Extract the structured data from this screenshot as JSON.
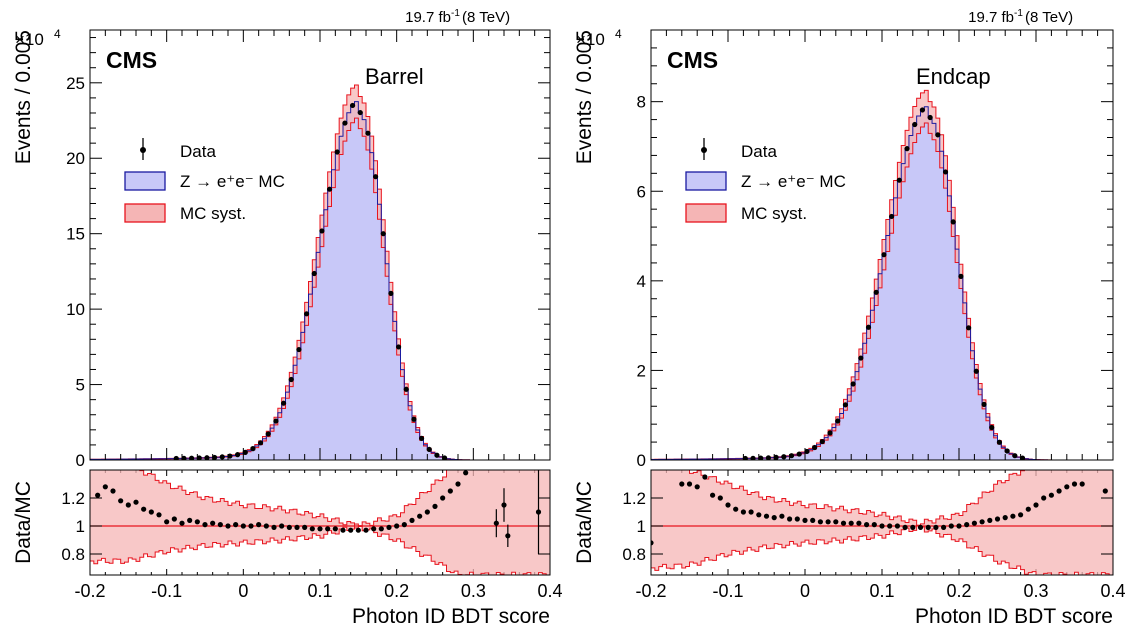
{
  "chart_data": [
    {
      "type": "histogram",
      "region": "Barrel",
      "experiment": "CMS",
      "lumi": "19.7 fb",
      "lumi_sup": "-1",
      "energy": "(8 TeV)",
      "xlabel": "Photon ID BDT score",
      "ylabel": "Events / 0.005",
      "y_exponent": "×10",
      "y_exponent_sup": "4",
      "ratio_ylabel": "Data/MC",
      "xlim": [
        -0.2,
        0.4
      ],
      "ylim": [
        0,
        28.5
      ],
      "ratio_ylim": [
        0.65,
        1.4
      ],
      "x_ticks": [
        -0.2,
        -0.1,
        0,
        0.1,
        0.2,
        0.3,
        0.4
      ],
      "x_tick_labels": [
        "-0.2",
        "-0.1",
        "0",
        "0.1",
        "0.2",
        "0.3",
        "0.4"
      ],
      "y_ticks": [
        0,
        5,
        10,
        15,
        20,
        25
      ],
      "y_tick_labels": [
        "0",
        "5",
        "10",
        "15",
        "20",
        "25"
      ],
      "ratio_ticks": [
        0.8,
        1,
        1.2
      ],
      "ratio_tick_labels": [
        "0.8",
        "1",
        "1.2"
      ],
      "legend": [
        "Data",
        "Z → e⁺e⁻ MC",
        "MC syst."
      ],
      "peak_x": 0.15,
      "peak_y": 23.8,
      "sigma_left": 0.05,
      "sigma_right": 0.035,
      "syst_fraction": 0.045,
      "ratio_points": [
        {
          "x": -0.19,
          "y": 1.22
        },
        {
          "x": -0.18,
          "y": 1.28
        },
        {
          "x": -0.17,
          "y": 1.25
        },
        {
          "x": -0.16,
          "y": 1.18
        },
        {
          "x": -0.15,
          "y": 1.15
        },
        {
          "x": -0.14,
          "y": 1.17
        },
        {
          "x": -0.13,
          "y": 1.12
        },
        {
          "x": -0.12,
          "y": 1.1
        },
        {
          "x": -0.11,
          "y": 1.08
        },
        {
          "x": -0.1,
          "y": 1.03
        },
        {
          "x": -0.09,
          "y": 1.05
        },
        {
          "x": -0.08,
          "y": 1.02
        },
        {
          "x": -0.07,
          "y": 1.04
        },
        {
          "x": -0.06,
          "y": 1.03
        },
        {
          "x": -0.05,
          "y": 1.01
        },
        {
          "x": -0.04,
          "y": 1.02
        },
        {
          "x": -0.03,
          "y": 1.01
        },
        {
          "x": -0.02,
          "y": 1.0
        },
        {
          "x": -0.01,
          "y": 1.01
        },
        {
          "x": 0.0,
          "y": 1.0
        },
        {
          "x": 0.01,
          "y": 1.0
        },
        {
          "x": 0.02,
          "y": 1.01
        },
        {
          "x": 0.03,
          "y": 1.0
        },
        {
          "x": 0.04,
          "y": 0.99
        },
        {
          "x": 0.05,
          "y": 1.0
        },
        {
          "x": 0.06,
          "y": 0.99
        },
        {
          "x": 0.07,
          "y": 0.99
        },
        {
          "x": 0.08,
          "y": 0.99
        },
        {
          "x": 0.09,
          "y": 0.98
        },
        {
          "x": 0.1,
          "y": 0.98
        },
        {
          "x": 0.11,
          "y": 0.98
        },
        {
          "x": 0.12,
          "y": 0.98
        },
        {
          "x": 0.13,
          "y": 0.97
        },
        {
          "x": 0.14,
          "y": 0.97
        },
        {
          "x": 0.15,
          "y": 0.97
        },
        {
          "x": 0.16,
          "y": 0.97
        },
        {
          "x": 0.17,
          "y": 0.98
        },
        {
          "x": 0.18,
          "y": 0.98
        },
        {
          "x": 0.19,
          "y": 0.99
        },
        {
          "x": 0.2,
          "y": 1.0
        },
        {
          "x": 0.21,
          "y": 1.01
        },
        {
          "x": 0.22,
          "y": 1.04
        },
        {
          "x": 0.23,
          "y": 1.07
        },
        {
          "x": 0.24,
          "y": 1.1
        },
        {
          "x": 0.25,
          "y": 1.14
        },
        {
          "x": 0.26,
          "y": 1.2
        },
        {
          "x": 0.27,
          "y": 1.25
        },
        {
          "x": 0.28,
          "y": 1.3
        },
        {
          "x": 0.29,
          "y": 1.38
        },
        {
          "x": 0.33,
          "y": 1.02,
          "err": 0.1
        },
        {
          "x": 0.34,
          "y": 1.15,
          "err": 0.12
        },
        {
          "x": 0.345,
          "y": 0.93,
          "err": 0.08
        },
        {
          "x": 0.385,
          "y": 1.1,
          "err": 0.3
        }
      ],
      "ratio_band_upper": [
        [
          -0.2,
          1.45
        ],
        [
          -0.15,
          1.45
        ],
        [
          -0.1,
          1.3
        ],
        [
          -0.05,
          1.2
        ],
        [
          0.0,
          1.15
        ],
        [
          0.05,
          1.12
        ],
        [
          0.1,
          1.07
        ],
        [
          0.15,
          1.0
        ],
        [
          0.2,
          1.07
        ],
        [
          0.25,
          1.3
        ],
        [
          0.28,
          1.45
        ],
        [
          0.4,
          1.45
        ]
      ],
      "ratio_band_lower": [
        [
          -0.2,
          0.75
        ],
        [
          -0.15,
          0.75
        ],
        [
          -0.1,
          0.82
        ],
        [
          -0.05,
          0.86
        ],
        [
          0.0,
          0.88
        ],
        [
          0.05,
          0.9
        ],
        [
          0.1,
          0.93
        ],
        [
          0.15,
          1.0
        ],
        [
          0.2,
          0.9
        ],
        [
          0.25,
          0.75
        ],
        [
          0.28,
          0.65
        ],
        [
          0.4,
          0.65
        ]
      ]
    },
    {
      "type": "histogram",
      "region": "Endcap",
      "experiment": "CMS",
      "lumi": "19.7 fb",
      "lumi_sup": "-1",
      "energy": "(8 TeV)",
      "xlabel": "Photon ID BDT score",
      "ylabel": "Events / 0.005",
      "y_exponent": "×10",
      "y_exponent_sup": "4",
      "ratio_ylabel": "Data/MC",
      "xlim": [
        -0.2,
        0.4
      ],
      "ylim": [
        0,
        9.6
      ],
      "ratio_ylim": [
        0.65,
        1.4
      ],
      "x_ticks": [
        -0.2,
        -0.1,
        0,
        0.1,
        0.2,
        0.3,
        0.4
      ],
      "x_tick_labels": [
        "-0.2",
        "-0.1",
        "0",
        "0.1",
        "0.2",
        "0.3",
        "0.4"
      ],
      "y_ticks": [
        0,
        2,
        4,
        6,
        8
      ],
      "y_tick_labels": [
        "0",
        "2",
        "4",
        "6",
        "8"
      ],
      "ratio_ticks": [
        0.8,
        1,
        1.2
      ],
      "ratio_tick_labels": [
        "0.8",
        "1",
        "1.2"
      ],
      "legend": [
        "Data",
        "Z → e⁺e⁻ MC",
        "MC syst."
      ],
      "peak_x": 0.16,
      "peak_y": 7.9,
      "sigma_left": 0.055,
      "sigma_right": 0.038,
      "syst_fraction": 0.045,
      "ratio_points": [
        {
          "x": -0.2,
          "y": 0.88
        },
        {
          "x": -0.16,
          "y": 1.3
        },
        {
          "x": -0.15,
          "y": 1.3
        },
        {
          "x": -0.14,
          "y": 1.28
        },
        {
          "x": -0.13,
          "y": 1.35
        },
        {
          "x": -0.12,
          "y": 1.22
        },
        {
          "x": -0.11,
          "y": 1.2
        },
        {
          "x": -0.1,
          "y": 1.15
        },
        {
          "x": -0.09,
          "y": 1.12
        },
        {
          "x": -0.08,
          "y": 1.1
        },
        {
          "x": -0.07,
          "y": 1.1
        },
        {
          "x": -0.06,
          "y": 1.08
        },
        {
          "x": -0.05,
          "y": 1.07
        },
        {
          "x": -0.04,
          "y": 1.06
        },
        {
          "x": -0.03,
          "y": 1.07
        },
        {
          "x": -0.02,
          "y": 1.05
        },
        {
          "x": -0.01,
          "y": 1.05
        },
        {
          "x": 0.0,
          "y": 1.04
        },
        {
          "x": 0.01,
          "y": 1.04
        },
        {
          "x": 0.02,
          "y": 1.03
        },
        {
          "x": 0.03,
          "y": 1.03
        },
        {
          "x": 0.04,
          "y": 1.03
        },
        {
          "x": 0.05,
          "y": 1.02
        },
        {
          "x": 0.06,
          "y": 1.02
        },
        {
          "x": 0.07,
          "y": 1.02
        },
        {
          "x": 0.08,
          "y": 1.01
        },
        {
          "x": 0.09,
          "y": 1.01
        },
        {
          "x": 0.1,
          "y": 1.0
        },
        {
          "x": 0.11,
          "y": 1.0
        },
        {
          "x": 0.12,
          "y": 1.0
        },
        {
          "x": 0.13,
          "y": 0.99
        },
        {
          "x": 0.14,
          "y": 0.99
        },
        {
          "x": 0.15,
          "y": 0.99
        },
        {
          "x": 0.16,
          "y": 0.99
        },
        {
          "x": 0.17,
          "y": 0.99
        },
        {
          "x": 0.18,
          "y": 0.99
        },
        {
          "x": 0.19,
          "y": 1.0
        },
        {
          "x": 0.2,
          "y": 1.0
        },
        {
          "x": 0.21,
          "y": 1.01
        },
        {
          "x": 0.22,
          "y": 1.02
        },
        {
          "x": 0.23,
          "y": 1.03
        },
        {
          "x": 0.24,
          "y": 1.04
        },
        {
          "x": 0.25,
          "y": 1.05
        },
        {
          "x": 0.26,
          "y": 1.06
        },
        {
          "x": 0.27,
          "y": 1.07
        },
        {
          "x": 0.28,
          "y": 1.08
        },
        {
          "x": 0.29,
          "y": 1.12
        },
        {
          "x": 0.3,
          "y": 1.15
        },
        {
          "x": 0.31,
          "y": 1.2
        },
        {
          "x": 0.32,
          "y": 1.22
        },
        {
          "x": 0.33,
          "y": 1.25
        },
        {
          "x": 0.34,
          "y": 1.28
        },
        {
          "x": 0.35,
          "y": 1.3
        },
        {
          "x": 0.36,
          "y": 1.3
        },
        {
          "x": 0.39,
          "y": 1.25
        }
      ],
      "ratio_band_upper": [
        [
          -0.2,
          1.45
        ],
        [
          -0.15,
          1.4
        ],
        [
          -0.1,
          1.3
        ],
        [
          -0.05,
          1.2
        ],
        [
          0.0,
          1.15
        ],
        [
          0.05,
          1.12
        ],
        [
          0.1,
          1.08
        ],
        [
          0.15,
          1.02
        ],
        [
          0.2,
          1.08
        ],
        [
          0.25,
          1.3
        ],
        [
          0.3,
          1.45
        ],
        [
          0.4,
          1.45
        ]
      ],
      "ratio_band_lower": [
        [
          -0.2,
          0.7
        ],
        [
          -0.15,
          0.72
        ],
        [
          -0.1,
          0.8
        ],
        [
          -0.05,
          0.85
        ],
        [
          0.0,
          0.88
        ],
        [
          0.05,
          0.9
        ],
        [
          0.1,
          0.93
        ],
        [
          0.15,
          0.99
        ],
        [
          0.2,
          0.9
        ],
        [
          0.25,
          0.75
        ],
        [
          0.3,
          0.65
        ],
        [
          0.4,
          0.65
        ]
      ]
    }
  ],
  "colors": {
    "mc_fill": "#c8c8f8",
    "mc_line": "#1a1aa0",
    "syst_fill": "#f5b5b5",
    "syst_line": "#e8141e",
    "data": "#000000",
    "ratio_line": "#e8141e"
  }
}
